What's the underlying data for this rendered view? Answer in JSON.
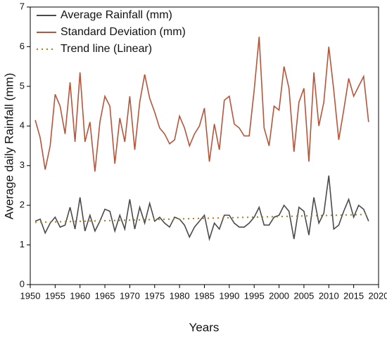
{
  "chart_data": {
    "type": "line",
    "xlabel": "Years",
    "ylabel": "Average daily Rainfall (mm)",
    "x": [
      1951,
      1952,
      1953,
      1954,
      1955,
      1956,
      1957,
      1958,
      1959,
      1960,
      1961,
      1962,
      1963,
      1964,
      1965,
      1966,
      1967,
      1968,
      1969,
      1970,
      1971,
      1972,
      1973,
      1974,
      1975,
      1976,
      1977,
      1978,
      1979,
      1980,
      1981,
      1982,
      1983,
      1984,
      1985,
      1986,
      1987,
      1988,
      1989,
      1990,
      1991,
      1992,
      1993,
      1994,
      1995,
      1996,
      1997,
      1998,
      1999,
      2000,
      2001,
      2002,
      2003,
      2004,
      2005,
      2006,
      2007,
      2008,
      2009,
      2010,
      2011,
      2012,
      2013,
      2014,
      2015,
      2016,
      2017,
      2018
    ],
    "series": [
      {
        "name": "Average Rainfall (mm)",
        "color": "#4a4a4a",
        "values": [
          1.6,
          1.65,
          1.3,
          1.55,
          1.7,
          1.45,
          1.5,
          1.95,
          1.4,
          2.2,
          1.35,
          1.75,
          1.35,
          1.6,
          1.9,
          1.85,
          1.35,
          1.75,
          1.4,
          2.15,
          1.4,
          1.95,
          1.55,
          2.05,
          1.6,
          1.7,
          1.55,
          1.45,
          1.7,
          1.65,
          1.5,
          1.2,
          1.45,
          1.6,
          1.75,
          1.15,
          1.55,
          1.4,
          1.75,
          1.75,
          1.55,
          1.45,
          1.45,
          1.55,
          1.7,
          1.95,
          1.5,
          1.5,
          1.7,
          1.75,
          2.0,
          1.85,
          1.15,
          1.95,
          1.85,
          1.25,
          2.2,
          1.55,
          1.8,
          2.75,
          1.4,
          1.5,
          1.85,
          2.15,
          1.7,
          2.0,
          1.9,
          1.6
        ]
      },
      {
        "name": "Standard Deviation (mm)",
        "color": "#b5553a",
        "values": [
          4.15,
          3.7,
          2.9,
          3.5,
          4.8,
          4.5,
          3.8,
          5.1,
          3.6,
          5.35,
          3.6,
          4.1,
          2.85,
          4.1,
          4.75,
          4.5,
          3.05,
          4.2,
          3.6,
          4.75,
          3.4,
          4.6,
          5.3,
          4.7,
          4.35,
          3.95,
          3.8,
          3.55,
          3.65,
          4.25,
          3.95,
          3.5,
          3.8,
          4.0,
          4.45,
          3.1,
          4.05,
          3.4,
          4.65,
          4.75,
          4.05,
          3.95,
          3.75,
          3.75,
          4.9,
          6.25,
          3.95,
          3.5,
          4.5,
          4.4,
          5.5,
          4.95,
          3.35,
          4.6,
          4.95,
          3.1,
          5.35,
          4.0,
          4.6,
          6.0,
          4.9,
          3.65,
          4.4,
          5.2,
          4.75,
          5.0,
          5.25,
          4.1
        ]
      },
      {
        "name": "Trend line (Linear)",
        "color": "#b07a1a",
        "dash": "2,5",
        "x": [
          1951,
          2018
        ],
        "values": [
          1.57,
          1.77
        ]
      }
    ],
    "xlim": [
      1950,
      2020
    ],
    "xticks": [
      1950,
      1955,
      1960,
      1965,
      1970,
      1975,
      1980,
      1985,
      1990,
      1995,
      2000,
      2005,
      2010,
      2015,
      2020
    ],
    "ylim": [
      0,
      7
    ],
    "yticks": [
      0,
      1,
      2,
      3,
      4,
      5,
      6,
      7
    ],
    "legend": "upper-left"
  }
}
